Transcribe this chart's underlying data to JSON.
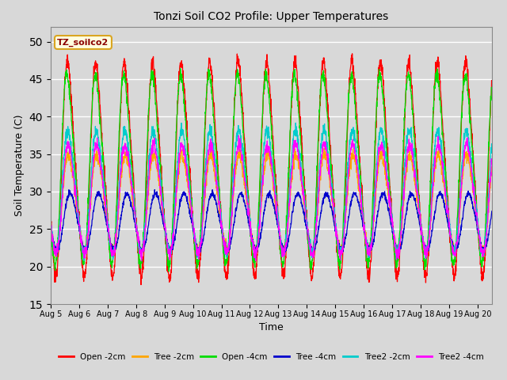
{
  "title": "Tonzi Soil CO2 Profile: Upper Temperatures",
  "xlabel": "Time",
  "ylabel": "Soil Temperature (C)",
  "ylim": [
    15,
    52
  ],
  "yticks": [
    15,
    20,
    25,
    30,
    35,
    40,
    45,
    50
  ],
  "x_tick_labels": [
    "Aug 5",
    "Aug 6",
    "Aug 7",
    "Aug 8",
    "Aug 9",
    "Aug 10",
    "Aug 11",
    "Aug 12",
    "Aug 13",
    "Aug 14",
    "Aug 15",
    "Aug 16",
    "Aug 17",
    "Aug 18",
    "Aug 19",
    "Aug 20"
  ],
  "label_annotation": "TZ_soilco2",
  "series": [
    {
      "label": "Open -2cm",
      "color": "#FF0000"
    },
    {
      "label": "Tree -2cm",
      "color": "#FFA500"
    },
    {
      "label": "Open -4cm",
      "color": "#00DD00"
    },
    {
      "label": "Tree -4cm",
      "color": "#0000CC"
    },
    {
      "label": "Tree2 -2cm",
      "color": "#00CCCC"
    },
    {
      "label": "Tree2 -4cm",
      "color": "#FF00FF"
    }
  ],
  "background_color": "#D8D8D8",
  "plot_bg_color": "#D8D8D8",
  "grid_color": "#FFFFFF"
}
